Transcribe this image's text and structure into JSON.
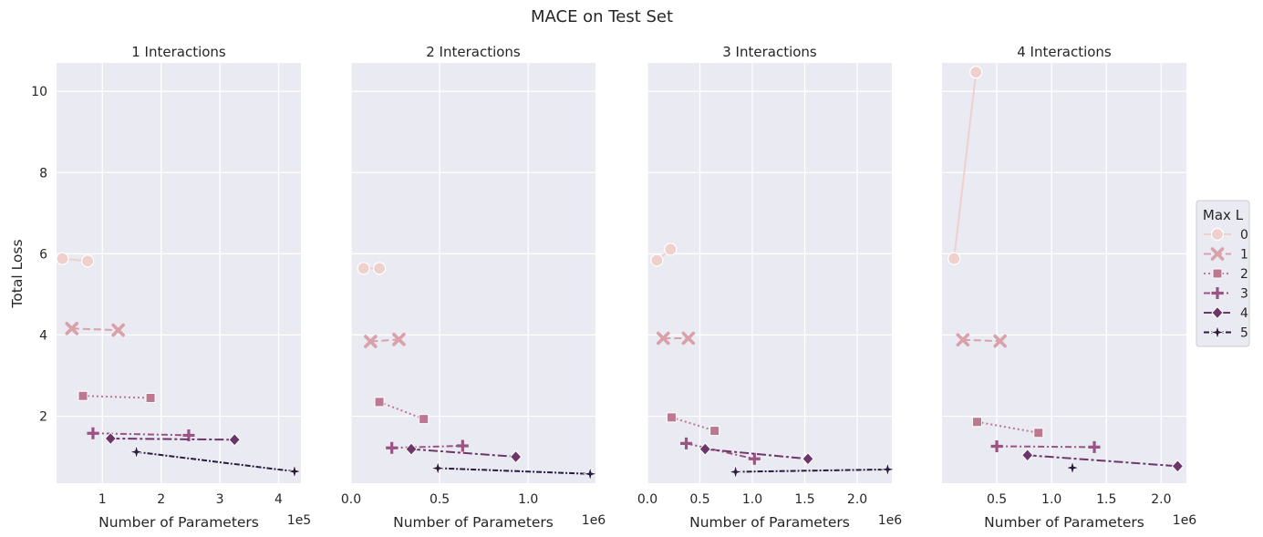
{
  "figure": {
    "title": "MACE on Test Set",
    "ylabel": "Total Loss"
  },
  "legend": {
    "title": "Max L",
    "entries": [
      "0",
      "1",
      "2",
      "3",
      "4",
      "5"
    ]
  },
  "colors": {
    "panel_bg": "#eaeaf2",
    "grid": "#ffffff",
    "L0": "#efd0cc",
    "L1": "#d9a1a9",
    "L2": "#bd7891",
    "L3": "#9a5483",
    "L4": "#6d3668",
    "L5": "#2b1b3e"
  },
  "chart_data": [
    {
      "type": "line",
      "title": "1 Interactions",
      "xlabel": "Number of Parameters",
      "x_offset_label": "1e5",
      "xlim": [
        0.22,
        4.38
      ],
      "ylim": [
        0.35,
        10.7
      ],
      "xticks": [
        1,
        2,
        3,
        4
      ],
      "xtick_labels": [
        "1",
        "2",
        "3",
        "4"
      ],
      "yticks": [
        2,
        4,
        6,
        8,
        10
      ],
      "ytick_labels": [
        "2",
        "4",
        "6",
        "8",
        "10"
      ],
      "series": [
        {
          "name": "0",
          "x": [
            0.32,
            0.75
          ],
          "y": [
            5.88,
            5.82
          ]
        },
        {
          "name": "1",
          "x": [
            0.48,
            1.27
          ],
          "y": [
            4.16,
            4.12
          ]
        },
        {
          "name": "2",
          "x": [
            0.67,
            1.82
          ],
          "y": [
            2.5,
            2.45
          ]
        },
        {
          "name": "3",
          "x": [
            0.84,
            2.47
          ],
          "y": [
            1.58,
            1.53
          ]
        },
        {
          "name": "4",
          "x": [
            1.14,
            3.25
          ],
          "y": [
            1.45,
            1.42
          ]
        },
        {
          "name": "5",
          "x": [
            1.58,
            4.27
          ],
          "y": [
            1.12,
            0.64
          ]
        }
      ]
    },
    {
      "type": "line",
      "title": "2 Interactions",
      "xlabel": "Number of Parameters",
      "x_offset_label": "1e6",
      "xlim": [
        0.0,
        1.38
      ],
      "ylim": [
        0.35,
        10.7
      ],
      "xticks": [
        0.0,
        0.5,
        1.0
      ],
      "xtick_labels": [
        "0.0",
        "0.5",
        "1.0"
      ],
      "yticks": [
        2,
        4,
        6,
        8,
        10
      ],
      "ytick_labels": [
        "",
        "",
        "",
        "",
        ""
      ],
      "series": [
        {
          "name": "0",
          "x": [
            0.07,
            0.16
          ],
          "y": [
            5.64,
            5.64
          ]
        },
        {
          "name": "1",
          "x": [
            0.11,
            0.27
          ],
          "y": [
            3.84,
            3.89
          ]
        },
        {
          "name": "2",
          "x": [
            0.16,
            0.41
          ],
          "y": [
            2.35,
            1.93
          ]
        },
        {
          "name": "3",
          "x": [
            0.23,
            0.63
          ],
          "y": [
            1.22,
            1.27
          ]
        },
        {
          "name": "4",
          "x": [
            0.34,
            0.93
          ],
          "y": [
            1.19,
            1.0
          ]
        },
        {
          "name": "5",
          "x": [
            0.49,
            1.35
          ],
          "y": [
            0.72,
            0.58
          ]
        }
      ]
    },
    {
      "type": "line",
      "title": "3 Interactions",
      "xlabel": "Number of Parameters",
      "x_offset_label": "1e6",
      "xlim": [
        0.0,
        2.33
      ],
      "ylim": [
        0.35,
        10.7
      ],
      "xticks": [
        0.0,
        0.5,
        1.0,
        1.5,
        2.0
      ],
      "xtick_labels": [
        "0.0",
        "0.5",
        "1.0",
        "1.5",
        "2.0"
      ],
      "yticks": [
        2,
        4,
        6,
        8,
        10
      ],
      "ytick_labels": [
        "",
        "",
        "",
        "",
        ""
      ],
      "series": [
        {
          "name": "0",
          "x": [
            0.09,
            0.22
          ],
          "y": [
            5.84,
            6.11
          ]
        },
        {
          "name": "1",
          "x": [
            0.15,
            0.39
          ],
          "y": [
            3.92,
            3.92
          ]
        },
        {
          "name": "2",
          "x": [
            0.23,
            0.64
          ],
          "y": [
            1.97,
            1.64
          ]
        },
        {
          "name": "3",
          "x": [
            0.37,
            1.02
          ],
          "y": [
            1.33,
            0.95
          ]
        },
        {
          "name": "4",
          "x": [
            0.55,
            1.53
          ],
          "y": [
            1.19,
            0.95
          ]
        },
        {
          "name": "5",
          "x": [
            0.84,
            2.29
          ],
          "y": [
            0.63,
            0.69
          ]
        }
      ]
    },
    {
      "type": "line",
      "title": "4 Interactions",
      "xlabel": "Number of Parameters",
      "x_offset_label": "1e6",
      "xlim": [
        0.0,
        2.23
      ],
      "ylim": [
        0.35,
        10.7
      ],
      "xticks": [
        0.5,
        1.0,
        1.5,
        2.0
      ],
      "xtick_labels": [
        "0.5",
        "1.0",
        "1.5",
        "2.0"
      ],
      "yticks": [
        2,
        4,
        6,
        8,
        10
      ],
      "ytick_labels": [
        "",
        "",
        "",
        "",
        ""
      ],
      "series": [
        {
          "name": "0",
          "x": [
            0.11,
            0.31
          ],
          "y": [
            5.88,
            10.47
          ]
        },
        {
          "name": "1",
          "x": [
            0.19,
            0.53
          ],
          "y": [
            3.88,
            3.85
          ]
        },
        {
          "name": "2",
          "x": [
            0.32,
            0.88
          ],
          "y": [
            1.86,
            1.59
          ]
        },
        {
          "name": "3",
          "x": [
            0.5,
            1.39
          ],
          "y": [
            1.26,
            1.24
          ]
        },
        {
          "name": "4",
          "x": [
            0.78,
            2.15
          ],
          "y": [
            1.04,
            0.77
          ]
        },
        {
          "name": "5",
          "x": [
            1.19,
            1.19
          ],
          "y": [
            0.73,
            0.73
          ]
        }
      ]
    }
  ]
}
